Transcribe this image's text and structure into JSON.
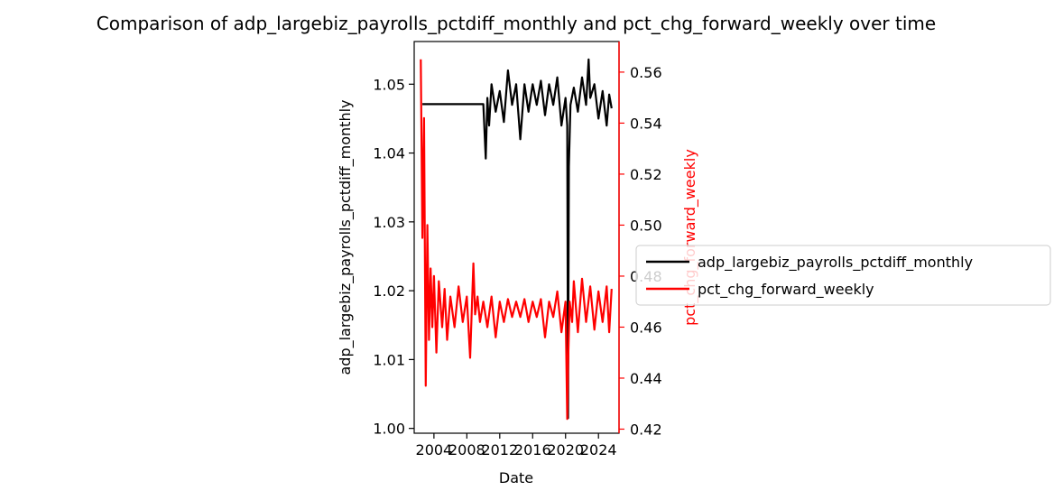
{
  "chart_data": {
    "type": "line",
    "title": "Comparison of adp_largebiz_payrolls_pctdiff_monthly and pct_chg_forward_weekly over time",
    "xlabel": "Date",
    "ylabel_left": "adp_largebiz_payrolls_pctdiff_monthly",
    "ylabel_right": "pct_chg_forward_weekly",
    "x_ticks": [
      "2004",
      "2008",
      "2012",
      "2016",
      "2020",
      "2024"
    ],
    "xlim": [
      2001.6,
      2026.5
    ],
    "y_left": {
      "ylim": [
        0.9993,
        1.0562
      ],
      "ticks": [
        "1.00",
        "1.01",
        "1.02",
        "1.03",
        "1.04",
        "1.05"
      ]
    },
    "y_right": {
      "ylim": [
        0.4184,
        0.572
      ],
      "ticks": [
        "0.42",
        "0.44",
        "0.46",
        "0.48",
        "0.50",
        "0.52",
        "0.54",
        "0.56"
      ]
    },
    "legend_position": "center-right (outside axes)",
    "series": [
      {
        "name": "adp_largebiz_payrolls_pctdiff_monthly",
        "color": "#000000",
        "axis": "left",
        "x": [
          2002.6,
          2003.0,
          2006.0,
          2010.0,
          2010.3,
          2010.5,
          2010.7,
          2011.0,
          2011.5,
          2012.0,
          2012.5,
          2013.0,
          2013.5,
          2014.0,
          2014.5,
          2015.0,
          2015.5,
          2016.0,
          2016.5,
          2017.0,
          2017.5,
          2018.0,
          2018.5,
          2019.0,
          2019.5,
          2020.0,
          2020.2,
          2020.3,
          2020.4,
          2020.6,
          2021.0,
          2021.5,
          2022.0,
          2022.5,
          2022.8,
          2023.0,
          2023.5,
          2024.0,
          2024.5,
          2025.0,
          2025.3,
          2025.6
        ],
        "values": [
          1.0471,
          1.0471,
          1.0471,
          1.0471,
          1.0392,
          1.048,
          1.044,
          1.05,
          1.046,
          1.049,
          1.0445,
          1.052,
          1.047,
          1.05,
          1.042,
          1.05,
          1.046,
          1.05,
          1.047,
          1.0505,
          1.0455,
          1.05,
          1.047,
          1.051,
          1.044,
          1.048,
          1.044,
          1.0015,
          1.038,
          1.047,
          1.0495,
          1.046,
          1.051,
          1.047,
          1.0536,
          1.048,
          1.05,
          1.045,
          1.049,
          1.044,
          1.0485,
          1.0465
        ]
      },
      {
        "name": "pct_chg_forward_weekly",
        "color": "#ff0000",
        "axis": "right",
        "x": [
          2002.4,
          2002.6,
          2002.8,
          2003.0,
          2003.2,
          2003.4,
          2003.6,
          2003.8,
          2004.0,
          2004.3,
          2004.6,
          2005.0,
          2005.3,
          2005.6,
          2006.0,
          2006.5,
          2007.0,
          2007.5,
          2008.0,
          2008.4,
          2008.8,
          2009.0,
          2009.3,
          2009.6,
          2010.0,
          2010.5,
          2011.0,
          2011.5,
          2012.0,
          2012.5,
          2013.0,
          2013.5,
          2014.0,
          2014.5,
          2015.0,
          2015.5,
          2016.0,
          2016.5,
          2017.0,
          2017.5,
          2018.0,
          2018.5,
          2019.0,
          2019.5,
          2020.0,
          2020.2,
          2020.3,
          2020.5,
          2020.8,
          2021.0,
          2021.5,
          2022.0,
          2022.5,
          2023.0,
          2023.5,
          2024.0,
          2024.5,
          2025.0,
          2025.3,
          2025.6
        ],
        "values": [
          0.565,
          0.495,
          0.542,
          0.437,
          0.5,
          0.455,
          0.483,
          0.46,
          0.48,
          0.45,
          0.478,
          0.46,
          0.475,
          0.455,
          0.472,
          0.46,
          0.476,
          0.462,
          0.472,
          0.448,
          0.485,
          0.465,
          0.472,
          0.462,
          0.47,
          0.46,
          0.472,
          0.456,
          0.47,
          0.462,
          0.471,
          0.464,
          0.47,
          0.464,
          0.471,
          0.462,
          0.47,
          0.464,
          0.471,
          0.456,
          0.47,
          0.464,
          0.474,
          0.458,
          0.47,
          0.424,
          0.445,
          0.47,
          0.462,
          0.478,
          0.458,
          0.479,
          0.462,
          0.476,
          0.459,
          0.474,
          0.462,
          0.476,
          0.458,
          0.475
        ]
      }
    ]
  }
}
